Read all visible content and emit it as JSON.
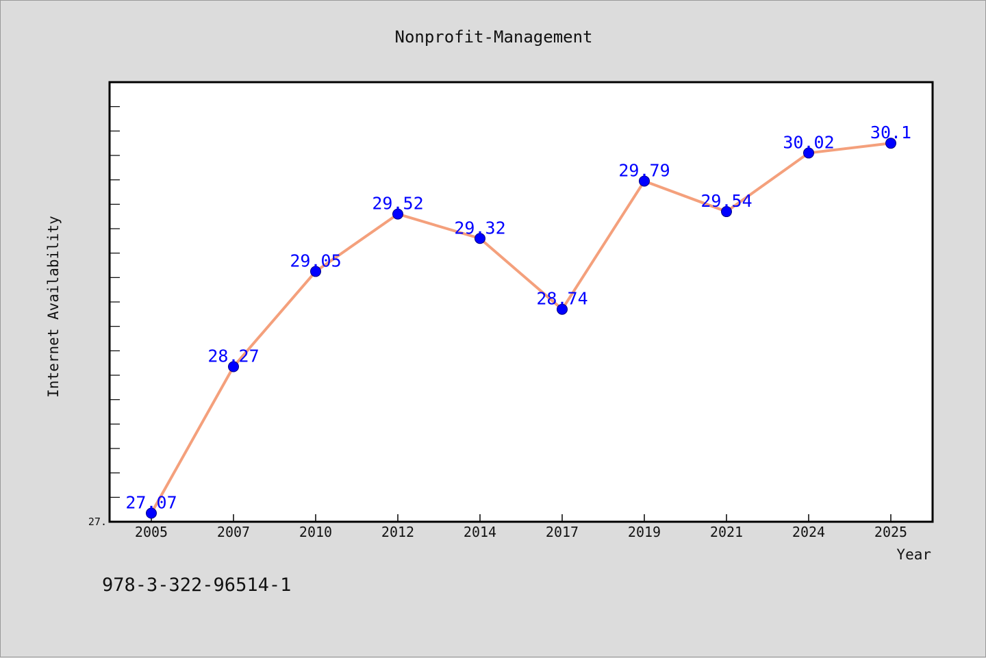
{
  "chart_data": {
    "type": "line",
    "title": "Nonprofit-Management",
    "xlabel": "Year",
    "ylabel": "Internet Availability",
    "categories": [
      "2005",
      "2007",
      "2010",
      "2012",
      "2014",
      "2017",
      "2019",
      "2021",
      "2024",
      "2025"
    ],
    "series": [
      {
        "values": [
          27.07,
          28.27,
          29.05,
          29.52,
          29.32,
          28.74,
          29.79,
          29.54,
          30.02,
          30.1
        ]
      }
    ],
    "data_labels": [
      "27.07",
      "28.27",
      "29.05",
      "29.52",
      "29.32",
      "28.74",
      "29.79",
      "29.54",
      "30.02",
      "30.1"
    ],
    "ylim": [
      27.0,
      30.6
    ],
    "y_tick_label": "27.",
    "grid": false,
    "legend": "none",
    "colors": {
      "line": "#f4a07c",
      "marker": "#0000ff",
      "marker_edge": "#000080",
      "data_label": "#0000ff",
      "plot_background": "#ffffff",
      "page_background": "#dcdcdc"
    }
  },
  "footer_text": "978-3-322-96514-1"
}
